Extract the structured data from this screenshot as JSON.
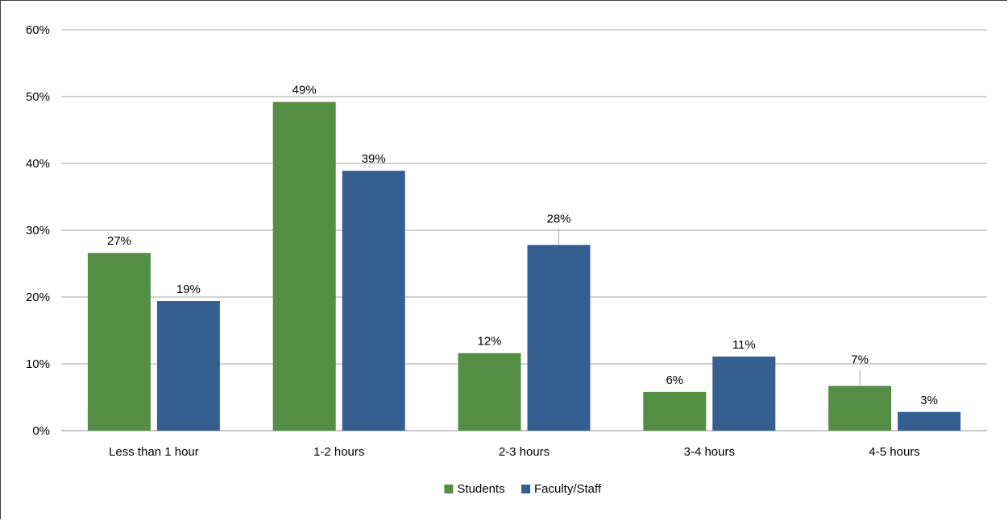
{
  "chart_data": {
    "type": "bar",
    "categories": [
      "Less than 1 hour",
      "1-2 hours",
      "2-3 hours",
      "3-4 hours",
      "4-5 hours"
    ],
    "series": [
      {
        "name": "Students",
        "values": [
          26.6,
          49.2,
          11.6,
          5.8,
          6.7
        ],
        "labels": [
          "27%",
          "49%",
          "12%",
          "6%",
          "7%"
        ],
        "color": "#548d44"
      },
      {
        "name": "Faculty/Staff",
        "values": [
          19.4,
          38.9,
          27.8,
          11.1,
          2.8
        ],
        "labels": [
          "19%",
          "39%",
          "28%",
          "11%",
          "3%"
        ],
        "color": "#355f91"
      }
    ],
    "yticks": [
      "0%",
      "10%",
      "20%",
      "30%",
      "40%",
      "50%",
      "60%"
    ],
    "ylim": [
      0,
      60
    ],
    "grid": true,
    "legend_position": "bottom",
    "gridline_color": "#a6a6a6"
  }
}
